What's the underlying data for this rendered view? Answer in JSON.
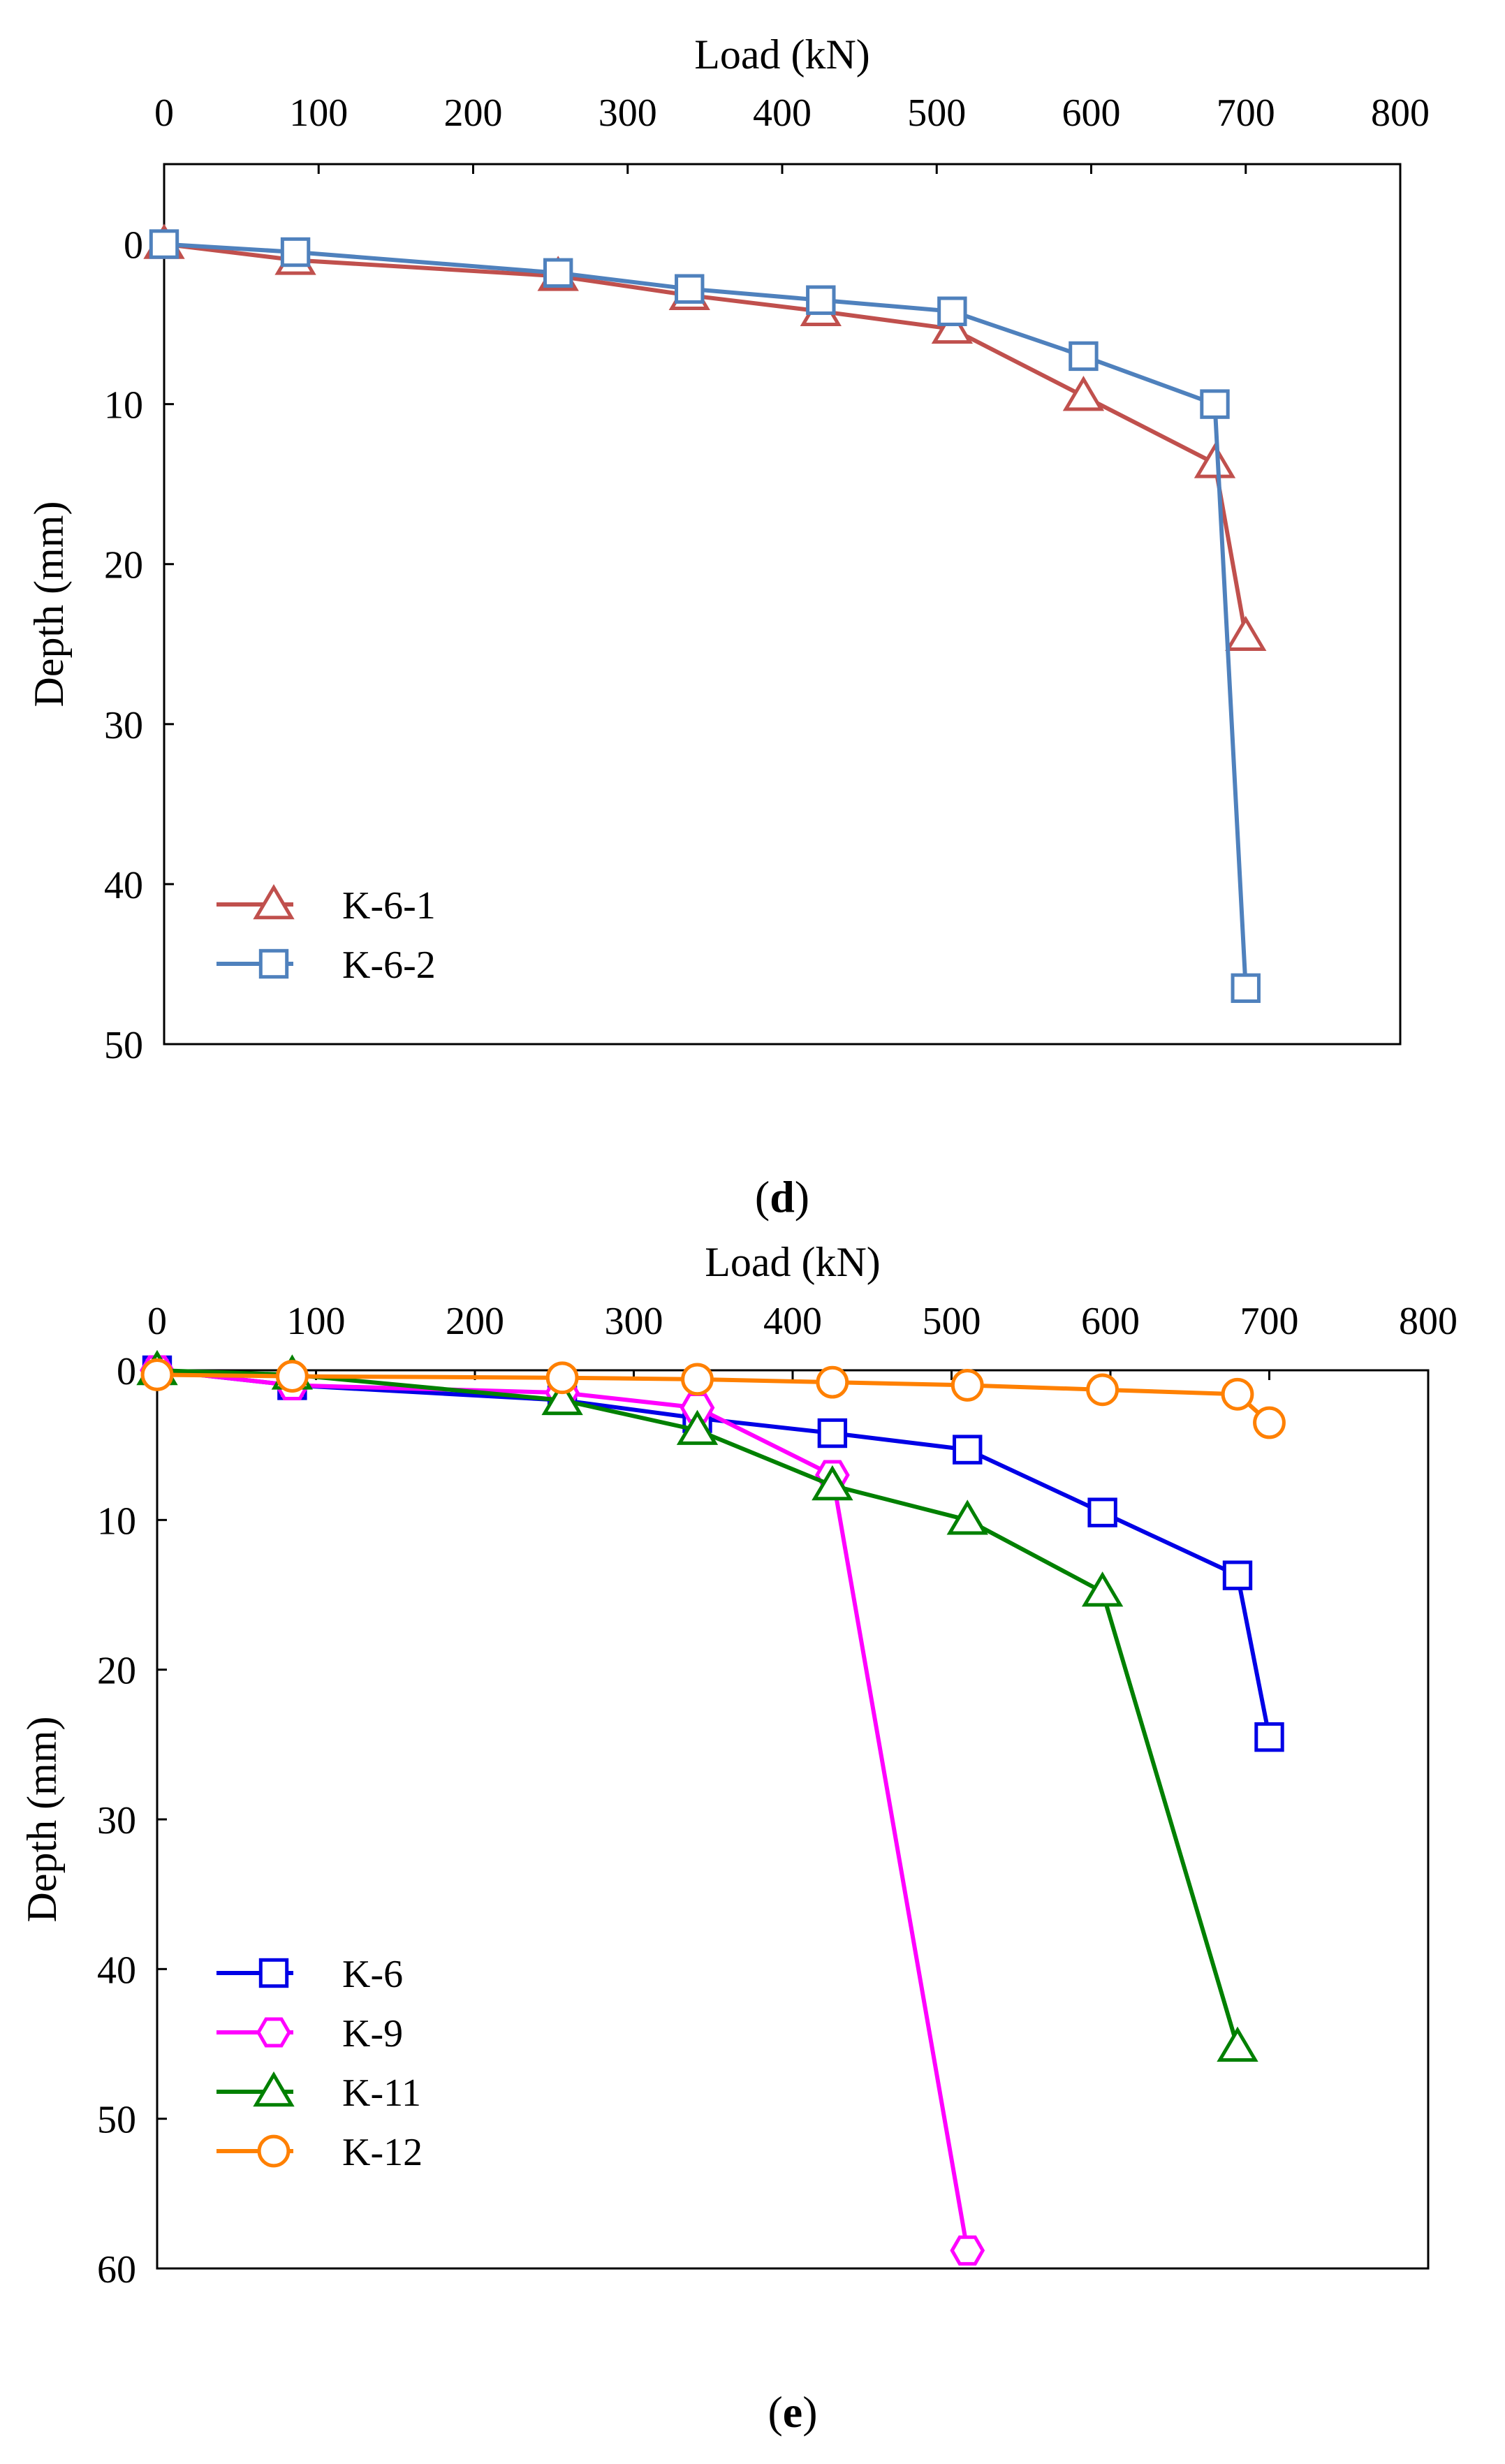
{
  "chart_data": [
    {
      "type": "line",
      "panel_label": "d",
      "title": "",
      "xlabel": "Load (kN)",
      "ylabel": "Depth (mm)",
      "xlim": [
        0,
        800
      ],
      "ylim": [
        50,
        -5
      ],
      "x_ticks": [
        0,
        100,
        200,
        300,
        400,
        500,
        600,
        700,
        800
      ],
      "y_ticks": [
        0,
        10,
        20,
        30,
        40,
        50
      ],
      "x_axis_position": "top",
      "y_axis_inverted": true,
      "grid": false,
      "legend_position": "bottom-left",
      "series": [
        {
          "name": "K-6-1",
          "color": "#c0504d",
          "marker": "triangle",
          "x": [
            0,
            85,
            255,
            340,
            425,
            510,
            595,
            680,
            700
          ],
          "y": [
            0,
            1,
            2,
            3.2,
            4.2,
            5.3,
            9.5,
            13.7,
            24.5
          ]
        },
        {
          "name": "K-6-2",
          "color": "#4f81bd",
          "marker": "square",
          "x": [
            0,
            85,
            255,
            340,
            425,
            510,
            595,
            680,
            700
          ],
          "y": [
            0,
            0.5,
            1.8,
            2.8,
            3.5,
            4.2,
            7,
            10,
            46.5
          ]
        }
      ]
    },
    {
      "type": "line",
      "panel_label": "e",
      "title": "",
      "xlabel": "Load (kN)",
      "ylabel": "Depth (mm)",
      "xlim": [
        0,
        800
      ],
      "ylim": [
        60,
        0
      ],
      "x_ticks": [
        0,
        100,
        200,
        300,
        400,
        500,
        600,
        700,
        800
      ],
      "y_ticks": [
        0,
        10,
        20,
        30,
        40,
        50,
        60
      ],
      "x_axis_position": "top",
      "y_axis_inverted": true,
      "grid": false,
      "legend_position": "bottom-left",
      "series": [
        {
          "name": "K-6",
          "color": "#0000e6",
          "marker": "square",
          "x": [
            0,
            85,
            255,
            340,
            425,
            510,
            595,
            680,
            700
          ],
          "y": [
            0,
            1,
            2,
            3.2,
            4.2,
            5.3,
            9.5,
            13.7,
            24.5
          ]
        },
        {
          "name": "K-9",
          "color": "#ff00ff",
          "marker": "hexagon",
          "x": [
            0,
            85,
            255,
            340,
            425,
            510
          ],
          "y": [
            0,
            1,
            1.5,
            2.5,
            7,
            58.8
          ]
        },
        {
          "name": "K-11",
          "color": "#008000",
          "marker": "triangle",
          "x": [
            0,
            85,
            255,
            340,
            425,
            510,
            595,
            680
          ],
          "y": [
            0,
            0.3,
            2,
            4,
            7.7,
            10,
            14.8,
            45.2
          ]
        },
        {
          "name": "K-12",
          "color": "#ff8000",
          "marker": "circle",
          "x": [
            0,
            85,
            255,
            340,
            425,
            510,
            595,
            680,
            700
          ],
          "y": [
            0.3,
            0.4,
            0.5,
            0.6,
            0.8,
            1,
            1.3,
            1.6,
            3.5
          ]
        }
      ]
    }
  ]
}
